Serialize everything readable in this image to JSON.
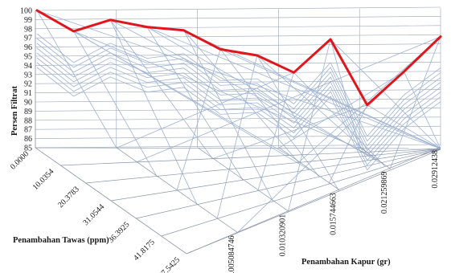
{
  "chart_data": {
    "type": "line",
    "subtype": "3d-wireframe",
    "zlabel": "Persen Filtrat",
    "xlabel": "Penambahan Kapur (gr)",
    "ylabel": "Penambahan Tawas (ppm)",
    "zlim": [
      85,
      100
    ],
    "z_ticks": [
      "85",
      "86",
      "87",
      "88",
      "89",
      "90",
      "91",
      "92",
      "93",
      "94",
      "95",
      "96",
      "97",
      "98",
      "99",
      "100"
    ],
    "kapur_ticks": [
      "0.005084746",
      "0.010320901",
      "0.015744663",
      "0.021259869",
      "0.02912438"
    ],
    "tawas_ticks": [
      "0.0000",
      "10.0354",
      "20.3783",
      "31.0544",
      "36.3925",
      "41.8175",
      "47.5425"
    ],
    "series_color": "#e0161c",
    "grid": true,
    "series": [
      {
        "values": [
          100,
          97.7,
          98.9,
          98.1,
          97.7,
          95.6,
          94.9,
          93,
          96.6,
          89.4,
          93,
          96.8
        ]
      }
    ]
  }
}
